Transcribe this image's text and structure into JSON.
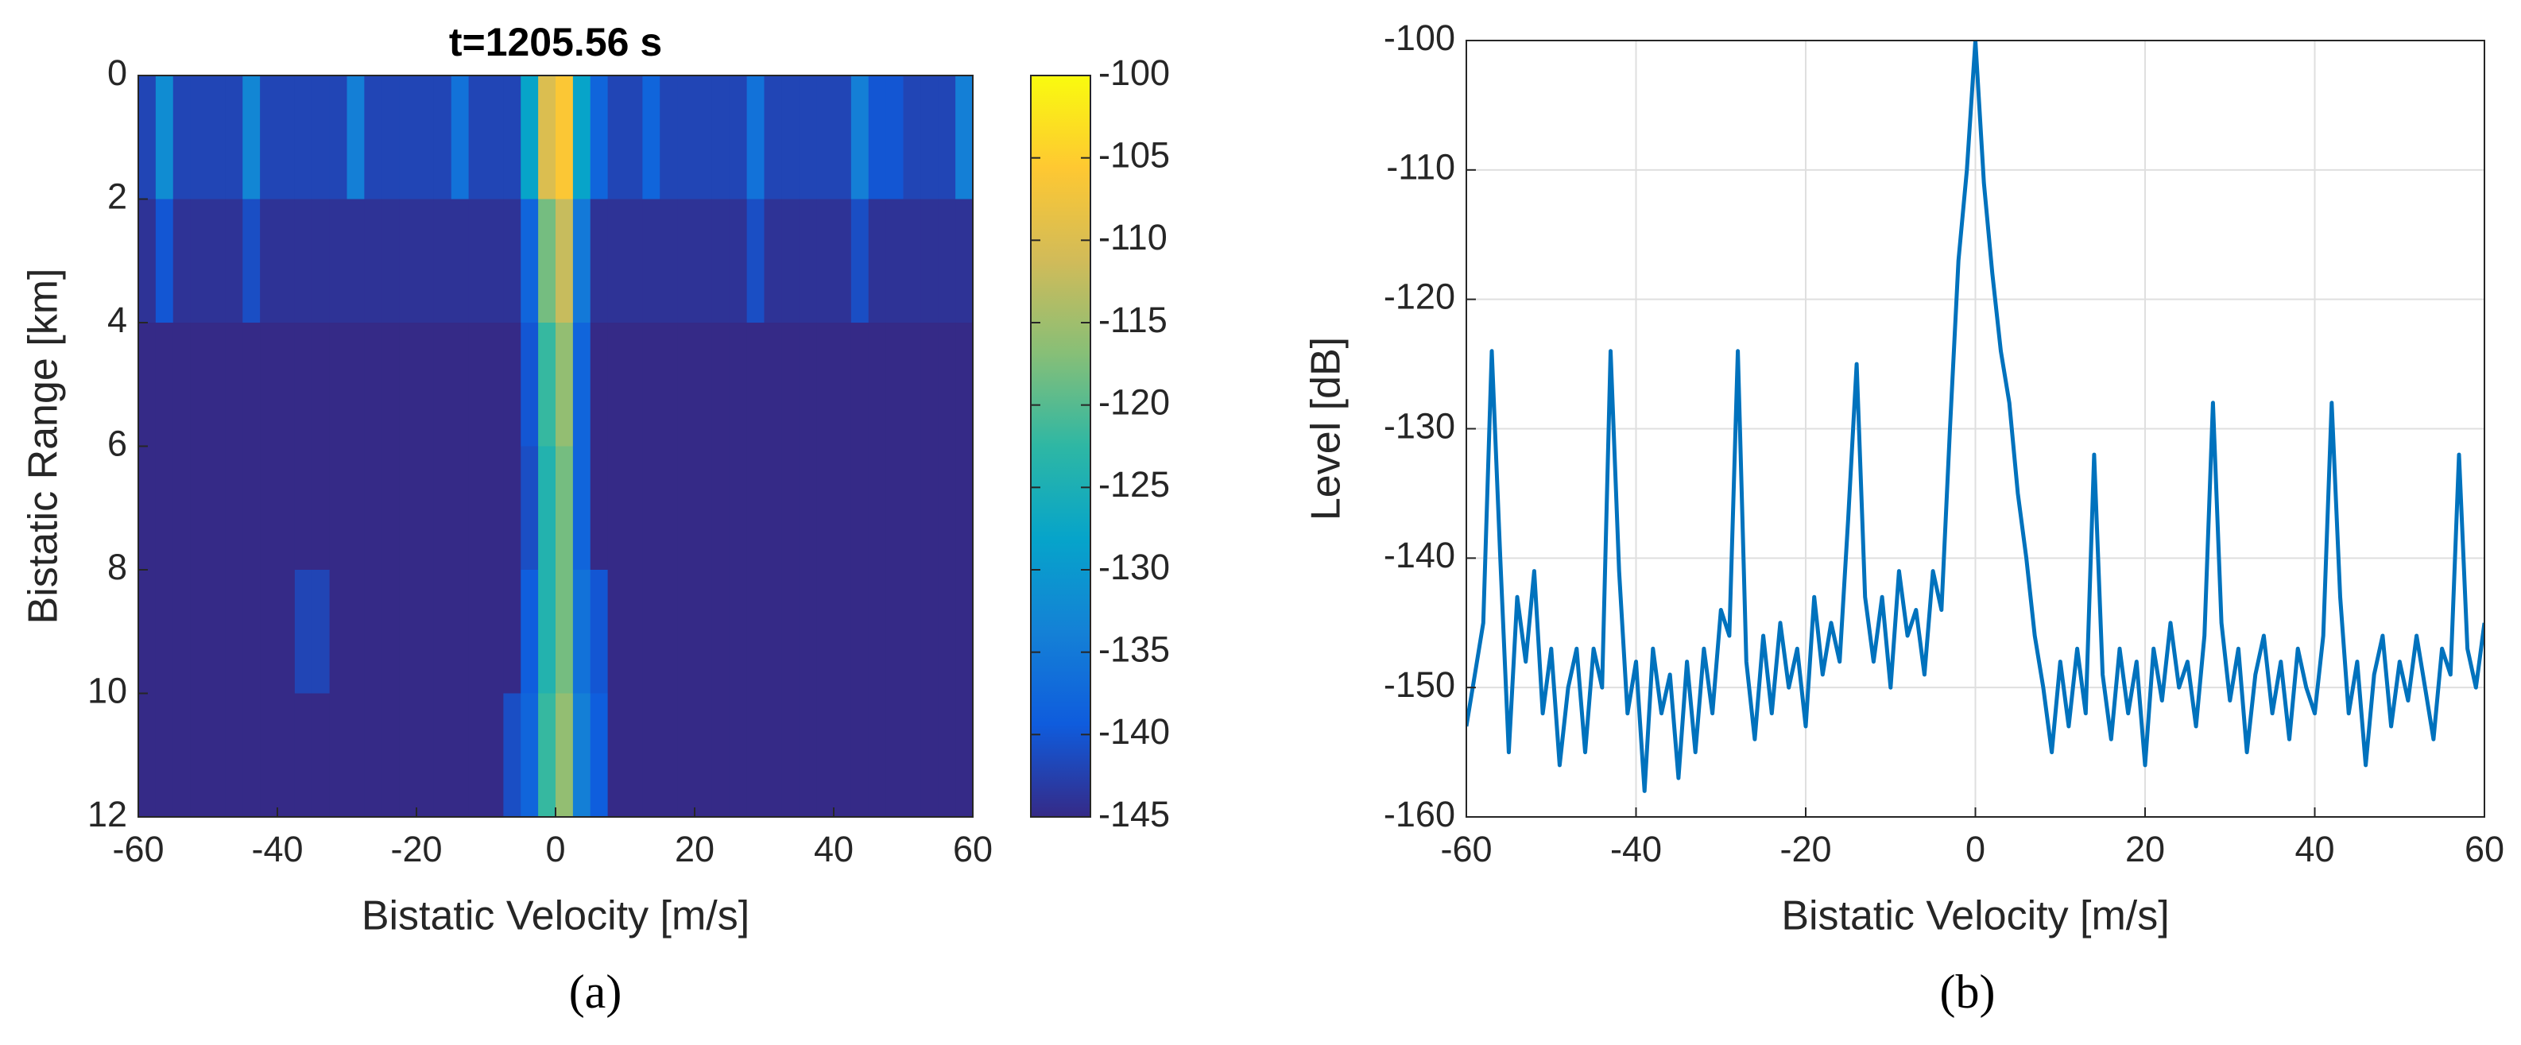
{
  "chart_data": [
    {
      "type": "heatmap",
      "title": "t=1205.56 s",
      "xlabel": "Bistatic Velocity [m/s]",
      "ylabel": "Bistatic Range [km]",
      "caption": "(a)",
      "x_bins": [
        -60,
        -57.5,
        -55,
        -52.5,
        -50,
        -47.5,
        -45,
        -42.5,
        -40,
        -37.5,
        -35,
        -32.5,
        -30,
        -27.5,
        -25,
        -22.5,
        -20,
        -17.5,
        -15,
        -12.5,
        -10,
        -7.5,
        -5,
        -2.5,
        0,
        2.5,
        5,
        7.5,
        10,
        12.5,
        15,
        17.5,
        20,
        22.5,
        25,
        27.5,
        30,
        32.5,
        35,
        37.5,
        40,
        42.5,
        45,
        47.5,
        50,
        52.5,
        55,
        57.5,
        60
      ],
      "y_bins": [
        0,
        2,
        4,
        6,
        8,
        10,
        12
      ],
      "z": [
        [
          -142,
          -132,
          -142,
          -142,
          -142,
          -142,
          -133,
          -142,
          -142,
          -142,
          -142,
          -142,
          -134,
          -142,
          -142,
          -142,
          -142,
          -142,
          -136,
          -142,
          -142,
          -142,
          -128,
          -110,
          -106,
          -128,
          -138,
          -142,
          -142,
          -138,
          -142,
          -142,
          -142,
          -142,
          -142,
          -136,
          -142,
          -142,
          -142,
          -142,
          -142,
          -134,
          -140,
          -140,
          -142,
          -142,
          -142,
          -134
        ],
        [
          -144,
          -140,
          -144,
          -144,
          -144,
          -144,
          -141,
          -144,
          -144,
          -144,
          -144,
          -144,
          -144,
          -144,
          -144,
          -144,
          -144,
          -144,
          -144,
          -144,
          -144,
          -144,
          -138,
          -118,
          -112,
          -135,
          -144,
          -144,
          -144,
          -144,
          -144,
          -144,
          -144,
          -144,
          -144,
          -141,
          -144,
          -144,
          -144,
          -144,
          -144,
          -141,
          -144,
          -144,
          -144,
          -144,
          -144,
          -144
        ],
        [
          -145,
          -145,
          -145,
          -145,
          -145,
          -145,
          -145,
          -145,
          -145,
          -145,
          -145,
          -145,
          -145,
          -145,
          -145,
          -145,
          -145,
          -145,
          -145,
          -145,
          -145,
          -145,
          -140,
          -122,
          -116,
          -138,
          -145,
          -145,
          -145,
          -145,
          -145,
          -145,
          -145,
          -145,
          -145,
          -145,
          -145,
          -145,
          -145,
          -145,
          -145,
          -145,
          -145,
          -145,
          -145,
          -145,
          -145,
          -145
        ],
        [
          -145,
          -145,
          -145,
          -145,
          -145,
          -145,
          -145,
          -145,
          -145,
          -145,
          -145,
          -145,
          -145,
          -145,
          -145,
          -145,
          -145,
          -145,
          -145,
          -145,
          -145,
          -145,
          -141,
          -124,
          -118,
          -138,
          -145,
          -145,
          -145,
          -145,
          -145,
          -145,
          -145,
          -145,
          -145,
          -145,
          -145,
          -145,
          -145,
          -145,
          -145,
          -145,
          -145,
          -145,
          -145,
          -145,
          -145,
          -145
        ],
        [
          -145,
          -145,
          -145,
          -145,
          -145,
          -145,
          -145,
          -145,
          -145,
          -142,
          -142,
          -145,
          -145,
          -145,
          -145,
          -145,
          -145,
          -145,
          -145,
          -145,
          -145,
          -145,
          -139,
          -124,
          -118,
          -136,
          -140,
          -145,
          -145,
          -145,
          -145,
          -145,
          -145,
          -145,
          -145,
          -145,
          -145,
          -145,
          -145,
          -145,
          -145,
          -145,
          -145,
          -145,
          -145,
          -145,
          -145,
          -145
        ],
        [
          -145,
          -145,
          -145,
          -145,
          -145,
          -145,
          -145,
          -145,
          -145,
          -145,
          -145,
          -145,
          -145,
          -145,
          -145,
          -145,
          -145,
          -145,
          -145,
          -145,
          -145,
          -141,
          -138,
          -122,
          -116,
          -134,
          -139,
          -145,
          -145,
          -145,
          -145,
          -145,
          -145,
          -145,
          -145,
          -145,
          -145,
          -145,
          -145,
          -145,
          -145,
          -145,
          -145,
          -145,
          -145,
          -145,
          -145,
          -145
        ]
      ],
      "xlim": [
        -60,
        60
      ],
      "xticks": [
        -60,
        -40,
        -20,
        0,
        20,
        40,
        60
      ],
      "ylim": [
        0,
        12
      ],
      "yticks": [
        0,
        2,
        4,
        6,
        8,
        10,
        12
      ],
      "y_direction": "reverse",
      "clim": [
        -145,
        -100
      ],
      "cticks": [
        -145,
        -140,
        -135,
        -130,
        -125,
        -120,
        -115,
        -110,
        -105,
        -100
      ],
      "colormap": "parula"
    },
    {
      "type": "line",
      "xlabel": "Bistatic Velocity [m/s]",
      "ylabel": "Level [dB]",
      "caption": "(b)",
      "x": [
        -60,
        -59,
        -58,
        -57,
        -56,
        -55,
        -54,
        -53,
        -52,
        -51,
        -50,
        -49,
        -48,
        -47,
        -46,
        -45,
        -44,
        -43,
        -42,
        -41,
        -40,
        -39,
        -38,
        -37,
        -36,
        -35,
        -34,
        -33,
        -32,
        -31,
        -30,
        -29,
        -28,
        -27,
        -26,
        -25,
        -24,
        -23,
        -22,
        -21,
        -20,
        -19,
        -18,
        -17,
        -16,
        -15,
        -14,
        -13,
        -12,
        -11,
        -10,
        -9,
        -8,
        -7,
        -6,
        -5,
        -4,
        -3,
        -2,
        -1,
        0,
        1,
        2,
        3,
        4,
        5,
        6,
        7,
        8,
        9,
        10,
        11,
        12,
        13,
        14,
        15,
        16,
        17,
        18,
        19,
        20,
        21,
        22,
        23,
        24,
        25,
        26,
        27,
        28,
        29,
        30,
        31,
        32,
        33,
        34,
        35,
        36,
        37,
        38,
        39,
        40,
        41,
        42,
        43,
        44,
        45,
        46,
        47,
        48,
        49,
        50,
        51,
        52,
        53,
        54,
        55,
        56,
        57,
        58,
        59,
        60
      ],
      "series": [
        {
          "color": "#0072bd",
          "values": [
            -153,
            -149,
            -145,
            -124,
            -140,
            -155,
            -143,
            -148,
            -141,
            -152,
            -147,
            -156,
            -150,
            -147,
            -155,
            -147,
            -150,
            -124,
            -141,
            -152,
            -148,
            -158,
            -147,
            -152,
            -149,
            -157,
            -148,
            -155,
            -147,
            -152,
            -144,
            -146,
            -124,
            -148,
            -154,
            -146,
            -152,
            -145,
            -150,
            -147,
            -153,
            -143,
            -149,
            -145,
            -148,
            -137,
            -125,
            -143,
            -148,
            -143,
            -150,
            -141,
            -146,
            -144,
            -149,
            -141,
            -144,
            -130,
            -117,
            -110,
            -100,
            -111,
            -118,
            -124,
            -128,
            -135,
            -140,
            -146,
            -150,
            -155,
            -148,
            -153,
            -147,
            -152,
            -132,
            -149,
            -154,
            -147,
            -152,
            -148,
            -156,
            -147,
            -151,
            -145,
            -150,
            -148,
            -153,
            -146,
            -128,
            -145,
            -151,
            -147,
            -155,
            -149,
            -146,
            -152,
            -148,
            -154,
            -147,
            -150,
            -152,
            -146,
            -128,
            -143,
            -152,
            -148,
            -156,
            -149,
            -146,
            -153,
            -148,
            -151,
            -146,
            -150,
            -154,
            -147,
            -149,
            -132,
            -147,
            -150,
            -145
          ]
        }
      ],
      "xlim": [
        -60,
        60
      ],
      "xticks": [
        -60,
        -40,
        -20,
        0,
        20,
        40,
        60
      ],
      "ylim": [
        -160,
        -100
      ],
      "yticks": [
        -160,
        -150,
        -140,
        -130,
        -120,
        -110,
        -100
      ],
      "grid": true
    }
  ]
}
